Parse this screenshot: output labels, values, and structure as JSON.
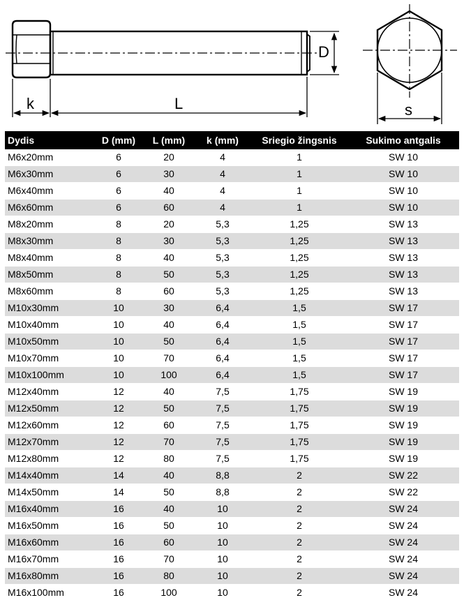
{
  "drawing": {
    "labels": {
      "k": "k",
      "L": "L",
      "D": "D",
      "s": "s"
    }
  },
  "table": {
    "headers": [
      "Dydis",
      "D (mm)",
      "L (mm)",
      "k (mm)",
      "Sriegio žingsnis",
      "Sukimo antgalis"
    ],
    "rows": [
      [
        "M6x20mm",
        "6",
        "20",
        "4",
        "1",
        "SW 10"
      ],
      [
        "M6x30mm",
        "6",
        "30",
        "4",
        "1",
        "SW 10"
      ],
      [
        "M6x40mm",
        "6",
        "40",
        "4",
        "1",
        "SW 10"
      ],
      [
        "M6x60mm",
        "6",
        "60",
        "4",
        "1",
        "SW 10"
      ],
      [
        "M8x20mm",
        "8",
        "20",
        "5,3",
        "1,25",
        "SW 13"
      ],
      [
        "M8x30mm",
        "8",
        "30",
        "5,3",
        "1,25",
        "SW 13"
      ],
      [
        "M8x40mm",
        "8",
        "40",
        "5,3",
        "1,25",
        "SW 13"
      ],
      [
        "M8x50mm",
        "8",
        "50",
        "5,3",
        "1,25",
        "SW 13"
      ],
      [
        "M8x60mm",
        "8",
        "60",
        "5,3",
        "1,25",
        "SW 13"
      ],
      [
        "M10x30mm",
        "10",
        "30",
        "6,4",
        "1,5",
        "SW 17"
      ],
      [
        "M10x40mm",
        "10",
        "40",
        "6,4",
        "1,5",
        "SW 17"
      ],
      [
        "M10x50mm",
        "10",
        "50",
        "6,4",
        "1,5",
        "SW 17"
      ],
      [
        "M10x70mm",
        "10",
        "70",
        "6,4",
        "1,5",
        "SW 17"
      ],
      [
        "M10x100mm",
        "10",
        "100",
        "6,4",
        "1,5",
        "SW 17"
      ],
      [
        "M12x40mm",
        "12",
        "40",
        "7,5",
        "1,75",
        "SW 19"
      ],
      [
        "M12x50mm",
        "12",
        "50",
        "7,5",
        "1,75",
        "SW 19"
      ],
      [
        "M12x60mm",
        "12",
        "60",
        "7,5",
        "1,75",
        "SW 19"
      ],
      [
        "M12x70mm",
        "12",
        "70",
        "7,5",
        "1,75",
        "SW 19"
      ],
      [
        "M12x80mm",
        "12",
        "80",
        "7,5",
        "1,75",
        "SW 19"
      ],
      [
        "M14x40mm",
        "14",
        "40",
        "8,8",
        "2",
        "SW 22"
      ],
      [
        "M14x50mm",
        "14",
        "50",
        "8,8",
        "2",
        "SW 22"
      ],
      [
        "M16x40mm",
        "16",
        "40",
        "10",
        "2",
        "SW 24"
      ],
      [
        "M16x50mm",
        "16",
        "50",
        "10",
        "2",
        "SW 24"
      ],
      [
        "M16x60mm",
        "16",
        "60",
        "10",
        "2",
        "SW 24"
      ],
      [
        "M16x70mm",
        "16",
        "70",
        "10",
        "2",
        "SW 24"
      ],
      [
        "M16x80mm",
        "16",
        "80",
        "10",
        "2",
        "SW 24"
      ],
      [
        "M16x100mm",
        "16",
        "100",
        "10",
        "2",
        "SW 24"
      ]
    ]
  }
}
